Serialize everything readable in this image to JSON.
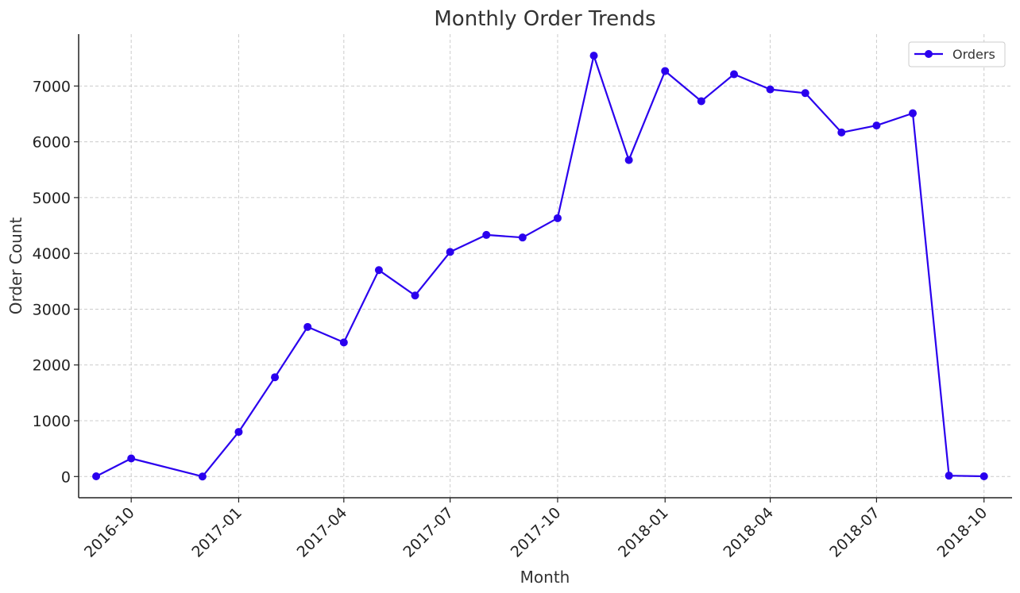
{
  "chart_data": {
    "type": "line",
    "title": "Monthly Order Trends",
    "xlabel": "Month",
    "ylabel": "Order Count",
    "x": [
      "2016-09",
      "2016-10",
      "2016-12",
      "2017-01",
      "2017-02",
      "2017-03",
      "2017-04",
      "2017-05",
      "2017-06",
      "2017-07",
      "2017-08",
      "2017-09",
      "2017-10",
      "2017-11",
      "2017-12",
      "2018-01",
      "2018-02",
      "2018-03",
      "2018-04",
      "2018-05",
      "2018-06",
      "2018-07",
      "2018-08",
      "2018-09",
      "2018-10"
    ],
    "series": [
      {
        "name": "Orders",
        "color": "#2a00ee",
        "values": [
          4,
          324,
          1,
          800,
          1780,
          2682,
          2404,
          3700,
          3245,
          4026,
          4331,
          4285,
          4631,
          7544,
          5673,
          7269,
          6728,
          7211,
          6939,
          6873,
          6167,
          6292,
          6512,
          16,
          4
        ]
      }
    ],
    "x_ticks": [
      "2016-10",
      "2017-01",
      "2017-04",
      "2017-07",
      "2017-10",
      "2018-01",
      "2018-04",
      "2018-07",
      "2018-10"
    ],
    "y_ticks": [
      0,
      1000,
      2000,
      3000,
      4000,
      5000,
      6000,
      7000
    ],
    "ylim": [
      -380,
      7930
    ],
    "xlim": [
      "2016-08-17",
      "2018-10-25"
    ],
    "grid": true,
    "legend_position": "top-right"
  }
}
